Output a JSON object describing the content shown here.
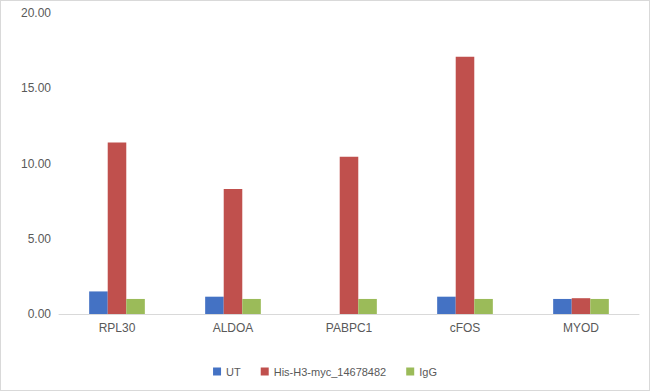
{
  "chart_data": {
    "type": "bar",
    "categories": [
      "RPL30",
      "ALDOA",
      "PABPC1",
      "cFOS",
      "MYOD"
    ],
    "series": [
      {
        "name": "UT",
        "color": "#4472c4",
        "values": [
          1.5,
          1.15,
          0,
          1.15,
          1.0
        ]
      },
      {
        "name": "His-H3-myc_14678482",
        "color": "#c0504d",
        "values": [
          11.4,
          8.3,
          10.45,
          17.1,
          1.05
        ]
      },
      {
        "name": "IgG",
        "color": "#9bbb59",
        "values": [
          1.0,
          1.0,
          1.0,
          1.0,
          1.0
        ]
      }
    ],
    "ylim": [
      0,
      20
    ],
    "yticks": [
      {
        "value": 0,
        "label": "0.00"
      },
      {
        "value": 5,
        "label": "5.00"
      },
      {
        "value": 10,
        "label": "10.00"
      },
      {
        "value": 15,
        "label": "15.00"
      },
      {
        "value": 20,
        "label": "20.00"
      }
    ],
    "grid": false,
    "legend": "bottom"
  }
}
